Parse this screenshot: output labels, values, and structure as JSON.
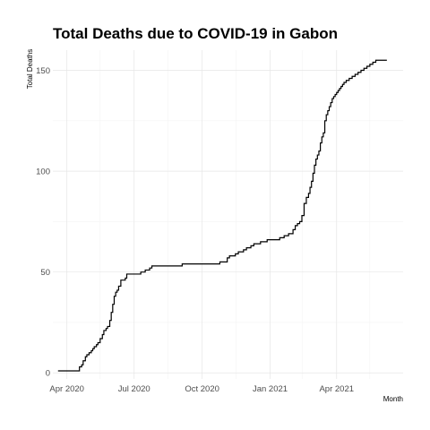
{
  "chart_data": {
    "type": "line",
    "title": "Total Deaths due to COVID-19 in Gabon",
    "xlabel": "Month",
    "ylabel": "Total Deaths",
    "x_type": "date",
    "xlim": [
      "2020-03-13",
      "2021-06-30"
    ],
    "ylim": [
      -3,
      160
    ],
    "x_ticks": [
      {
        "date": "2020-04-01",
        "label": "Apr 2020"
      },
      {
        "date": "2020-07-01",
        "label": "Jul 2020"
      },
      {
        "date": "2020-10-01",
        "label": "Oct 2020"
      },
      {
        "date": "2021-01-01",
        "label": "Jan 2021"
      },
      {
        "date": "2021-04-01",
        "label": "Apr 2021"
      }
    ],
    "x_minor_ticks": [
      "2020-05-16",
      "2020-08-16",
      "2020-11-16",
      "2021-02-14",
      "2021-05-16"
    ],
    "y_ticks": [
      0,
      50,
      100,
      150
    ],
    "y_minor_ticks": [
      25,
      75,
      125
    ],
    "grid": true,
    "line_color": "#000000",
    "series": [
      {
        "x": [
          "2020-03-20",
          "2020-04-14",
          "2020-04-18",
          "2020-04-21",
          "2020-04-23",
          "2020-04-26",
          "2020-04-28",
          "2020-05-01",
          "2020-05-04",
          "2020-05-06",
          "2020-05-08",
          "2020-05-11",
          "2020-05-13",
          "2020-05-16",
          "2020-05-19",
          "2020-05-21",
          "2020-05-24",
          "2020-05-26",
          "2020-05-29",
          "2020-05-31",
          "2020-06-02",
          "2020-06-04",
          "2020-06-06",
          "2020-06-08",
          "2020-06-10",
          "2020-06-13",
          "2020-06-16",
          "2020-06-19",
          "2020-06-21",
          "2020-07-08",
          "2020-07-10",
          "2020-07-16",
          "2020-07-18",
          "2020-07-22",
          "2020-07-25",
          "2020-08-01",
          "2020-08-03",
          "2020-08-05",
          "2020-08-08",
          "2020-08-12",
          "2020-08-16",
          "2020-08-25",
          "2020-09-04",
          "2020-09-15",
          "2020-09-27",
          "2020-10-09",
          "2020-10-21",
          "2020-10-25",
          "2020-11-04",
          "2020-11-07",
          "2020-11-15",
          "2020-11-19",
          "2020-11-26",
          "2020-11-30",
          "2020-12-06",
          "2020-12-10",
          "2020-12-14",
          "2020-12-19",
          "2020-12-22",
          "2020-12-28",
          "2021-01-02",
          "2021-01-08",
          "2021-01-14",
          "2021-01-20",
          "2021-01-26",
          "2021-02-01",
          "2021-02-04",
          "2021-02-07",
          "2021-02-10",
          "2021-02-13",
          "2021-02-16",
          "2021-02-19",
          "2021-02-22",
          "2021-02-24",
          "2021-02-26",
          "2021-02-28",
          "2021-03-02",
          "2021-03-04",
          "2021-03-06",
          "2021-03-08",
          "2021-03-10",
          "2021-03-12",
          "2021-03-14",
          "2021-03-16",
          "2021-03-18",
          "2021-03-20",
          "2021-03-22",
          "2021-03-24",
          "2021-03-26",
          "2021-03-28",
          "2021-03-30",
          "2021-04-01",
          "2021-04-03",
          "2021-04-05",
          "2021-04-07",
          "2021-04-09",
          "2021-04-11",
          "2021-04-14",
          "2021-04-18",
          "2021-04-22",
          "2021-04-26",
          "2021-04-30",
          "2021-05-04",
          "2021-05-08",
          "2021-05-12",
          "2021-05-16",
          "2021-05-20",
          "2021-05-24",
          "2021-05-27",
          "2021-05-30",
          "2021-06-02",
          "2021-06-05",
          "2021-06-08"
        ],
        "y": [
          1,
          1,
          3,
          4,
          6,
          8,
          9,
          10,
          11,
          12,
          13,
          14,
          15,
          17,
          19,
          21,
          22,
          23,
          26,
          30,
          34,
          38,
          40,
          41,
          43,
          46,
          46,
          47,
          49,
          49,
          50,
          51,
          51,
          52,
          53,
          53,
          53,
          53,
          53,
          53,
          53,
          53,
          54,
          54,
          54,
          54,
          54,
          55,
          57,
          58,
          59,
          60,
          61,
          62,
          63,
          64,
          64,
          65,
          65,
          66,
          66,
          66,
          67,
          68,
          69,
          71,
          73,
          74,
          75,
          78,
          84,
          87,
          89,
          92,
          95,
          99,
          103,
          106,
          108,
          110,
          114,
          117,
          119,
          125,
          128,
          130,
          132,
          134,
          136,
          137,
          138,
          139,
          140,
          141,
          142,
          143,
          144,
          145,
          146,
          147,
          148,
          149,
          150,
          151,
          152,
          153,
          154,
          155,
          155,
          155,
          155,
          155,
          155
        ]
      }
    ]
  }
}
